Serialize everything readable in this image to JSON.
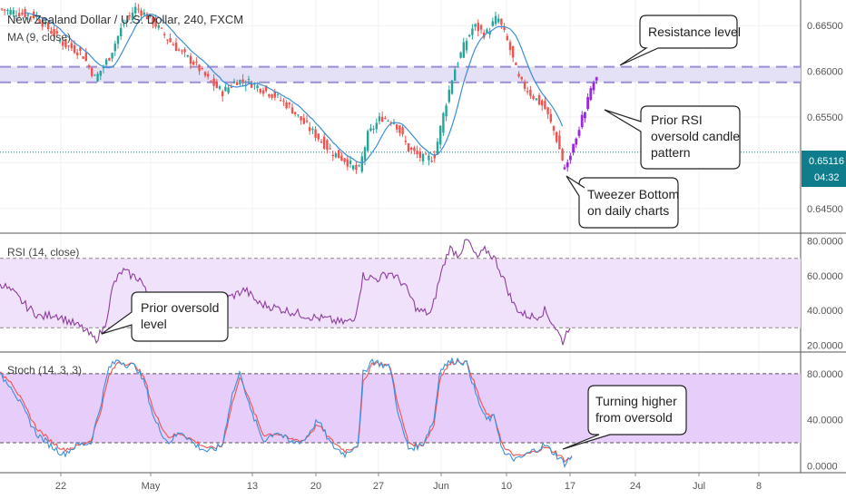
{
  "chart_data": {
    "type": "candlestick",
    "symbol_title": "New Zealand Dollar / U.S. Dollar, 240, FXCM",
    "ma_label": "MA (9, close)",
    "price_axis": {
      "ticks": [
        "0.66500",
        "0.66000",
        "0.65500",
        "0.65000",
        "0.64500"
      ],
      "tick_values": [
        0.665,
        0.66,
        0.655,
        0.65,
        0.645
      ],
      "range": [
        0.6423,
        0.6678
      ],
      "last_price": "0.65116",
      "last_price_value": 0.65116,
      "countdown": "04:32"
    },
    "x_axis": {
      "labels": [
        "22",
        "May",
        "13",
        "20",
        "27",
        "Jun",
        "10",
        "17",
        "24",
        "Jul",
        "8"
      ]
    },
    "resistance": {
      "high": 0.6605,
      "low": 0.6588
    },
    "price_path": [
      [
        0,
        0.6668
      ],
      [
        40,
        0.666
      ],
      [
        70,
        0.663
      ],
      [
        90,
        0.662
      ],
      [
        105,
        0.6592
      ],
      [
        120,
        0.6615
      ],
      [
        135,
        0.665
      ],
      [
        150,
        0.667
      ],
      [
        168,
        0.6655
      ],
      [
        185,
        0.6635
      ],
      [
        200,
        0.662
      ],
      [
        215,
        0.6608
      ],
      [
        230,
        0.659
      ],
      [
        245,
        0.6577
      ],
      [
        260,
        0.659
      ],
      [
        275,
        0.6588
      ],
      [
        290,
        0.658
      ],
      [
        305,
        0.6572
      ],
      [
        320,
        0.656
      ],
      [
        335,
        0.6543
      ],
      [
        350,
        0.6528
      ],
      [
        365,
        0.6512
      ],
      [
        380,
        0.6503
      ],
      [
        395,
        0.649
      ],
      [
        405,
        0.653
      ],
      [
        420,
        0.655
      ],
      [
        435,
        0.6545
      ],
      [
        450,
        0.6515
      ],
      [
        465,
        0.6505
      ],
      [
        478,
        0.6505
      ],
      [
        490,
        0.656
      ],
      [
        500,
        0.66
      ],
      [
        512,
        0.663
      ],
      [
        522,
        0.665
      ],
      [
        535,
        0.664
      ],
      [
        548,
        0.666
      ],
      [
        560,
        0.663
      ],
      [
        572,
        0.659
      ],
      [
        585,
        0.6575
      ],
      [
        600,
        0.656
      ],
      [
        612,
        0.653
      ],
      [
        622,
        0.6495
      ],
      [
        632,
        0.6525
      ]
    ],
    "highlight_path": [
      [
        622,
        0.6495
      ],
      [
        630,
        0.6515
      ],
      [
        640,
        0.6545
      ],
      [
        648,
        0.657
      ],
      [
        654,
        0.659
      ],
      [
        660,
        0.6595
      ]
    ],
    "rsi": {
      "label": "RSI (14, close)",
      "ticks": [
        "80.0000",
        "60.0000",
        "40.0000",
        "20.0000"
      ],
      "tick_values": [
        80,
        60,
        40,
        20
      ],
      "range": [
        16,
        84
      ],
      "upper": 70,
      "lower": 30,
      "values": [
        [
          0,
          56
        ],
        [
          15,
          50
        ],
        [
          30,
          42
        ],
        [
          45,
          36
        ],
        [
          60,
          38
        ],
        [
          75,
          34
        ],
        [
          90,
          30
        ],
        [
          105,
          23
        ],
        [
          115,
          30
        ],
        [
          125,
          55
        ],
        [
          135,
          63
        ],
        [
          145,
          60
        ],
        [
          155,
          58
        ],
        [
          165,
          45
        ],
        [
          180,
          40
        ],
        [
          195,
          38
        ],
        [
          210,
          44
        ],
        [
          225,
          46
        ],
        [
          240,
          45
        ],
        [
          255,
          48
        ],
        [
          270,
          52
        ],
        [
          285,
          44
        ],
        [
          300,
          42
        ],
        [
          315,
          40
        ],
        [
          330,
          38
        ],
        [
          345,
          36
        ],
        [
          360,
          35
        ],
        [
          375,
          33
        ],
        [
          390,
          34
        ],
        [
          400,
          60
        ],
        [
          415,
          58
        ],
        [
          430,
          62
        ],
        [
          445,
          55
        ],
        [
          460,
          40
        ],
        [
          475,
          38
        ],
        [
          485,
          60
        ],
        [
          495,
          76
        ],
        [
          505,
          72
        ],
        [
          515,
          81
        ],
        [
          525,
          70
        ],
        [
          535,
          75
        ],
        [
          545,
          70
        ],
        [
          555,
          58
        ],
        [
          565,
          44
        ],
        [
          575,
          38
        ],
        [
          590,
          36
        ],
        [
          600,
          40
        ],
        [
          612,
          30
        ],
        [
          620,
          22
        ],
        [
          628,
          32
        ]
      ]
    },
    "stoch": {
      "label": "Stoch (14, 3, 3)",
      "ticks": [
        "80.0000",
        "40.0000",
        "0.0000"
      ],
      "tick_values": [
        80,
        40,
        0
      ],
      "range": [
        -6,
        98
      ],
      "upper": 80,
      "lower": 20,
      "k": [
        [
          0,
          78
        ],
        [
          12,
          70
        ],
        [
          25,
          50
        ],
        [
          40,
          28
        ],
        [
          55,
          18
        ],
        [
          70,
          10
        ],
        [
          85,
          18
        ],
        [
          100,
          20
        ],
        [
          110,
          50
        ],
        [
          120,
          85
        ],
        [
          130,
          92
        ],
        [
          140,
          88
        ],
        [
          150,
          86
        ],
        [
          160,
          70
        ],
        [
          170,
          40
        ],
        [
          185,
          20
        ],
        [
          200,
          30
        ],
        [
          215,
          18
        ],
        [
          230,
          12
        ],
        [
          245,
          18
        ],
        [
          255,
          60
        ],
        [
          265,
          82
        ],
        [
          275,
          50
        ],
        [
          290,
          22
        ],
        [
          305,
          30
        ],
        [
          320,
          20
        ],
        [
          335,
          22
        ],
        [
          350,
          40
        ],
        [
          365,
          18
        ],
        [
          380,
          10
        ],
        [
          395,
          20
        ],
        [
          400,
          80
        ],
        [
          410,
          92
        ],
        [
          420,
          88
        ],
        [
          430,
          85
        ],
        [
          440,
          40
        ],
        [
          450,
          15
        ],
        [
          465,
          18
        ],
        [
          478,
          40
        ],
        [
          485,
          85
        ],
        [
          495,
          90
        ],
        [
          505,
          92
        ],
        [
          515,
          88
        ],
        [
          525,
          60
        ],
        [
          535,
          40
        ],
        [
          545,
          42
        ],
        [
          555,
          10
        ],
        [
          570,
          5
        ],
        [
          585,
          12
        ],
        [
          600,
          18
        ],
        [
          612,
          10
        ],
        [
          622,
          2
        ],
        [
          630,
          8
        ]
      ],
      "d": [
        [
          0,
          80
        ],
        [
          12,
          74
        ],
        [
          25,
          55
        ],
        [
          40,
          33
        ],
        [
          55,
          22
        ],
        [
          70,
          14
        ],
        [
          85,
          17
        ],
        [
          100,
          22
        ],
        [
          110,
          45
        ],
        [
          120,
          78
        ],
        [
          130,
          90
        ],
        [
          140,
          89
        ],
        [
          150,
          87
        ],
        [
          160,
          74
        ],
        [
          170,
          46
        ],
        [
          185,
          25
        ],
        [
          200,
          28
        ],
        [
          215,
          21
        ],
        [
          230,
          15
        ],
        [
          245,
          17
        ],
        [
          255,
          52
        ],
        [
          265,
          78
        ],
        [
          275,
          56
        ],
        [
          290,
          27
        ],
        [
          305,
          28
        ],
        [
          320,
          23
        ],
        [
          335,
          22
        ],
        [
          350,
          36
        ],
        [
          365,
          22
        ],
        [
          380,
          13
        ],
        [
          395,
          18
        ],
        [
          400,
          72
        ],
        [
          410,
          89
        ],
        [
          420,
          89
        ],
        [
          430,
          86
        ],
        [
          440,
          48
        ],
        [
          450,
          20
        ],
        [
          465,
          17
        ],
        [
          478,
          35
        ],
        [
          485,
          78
        ],
        [
          495,
          88
        ],
        [
          505,
          91
        ],
        [
          515,
          89
        ],
        [
          525,
          66
        ],
        [
          535,
          45
        ],
        [
          545,
          42
        ],
        [
          555,
          15
        ],
        [
          570,
          8
        ],
        [
          585,
          11
        ],
        [
          600,
          16
        ],
        [
          612,
          12
        ],
        [
          622,
          5
        ],
        [
          630,
          7
        ]
      ]
    }
  },
  "annotations": {
    "resistance": "Resistance level",
    "rsi_candle": [
      "Prior RSI",
      "oversold candle",
      "pattern"
    ],
    "tweezer": [
      "Tweezer Bottom",
      "on daily charts"
    ],
    "prior_oversold": [
      "Prior oversold",
      "level"
    ],
    "turning": [
      "Turning higher",
      "from oversold"
    ]
  },
  "colors": {
    "up": "#26a69a",
    "down": "#ef5350",
    "ma": "#3a8fd8",
    "highlight": "#9c27e0",
    "rsi_line": "#8e3d9e",
    "rsi_band": "#f0e2fb",
    "stoch_band": "#e7cdfa",
    "stoch_k": "#3a8fd8",
    "stoch_d": "#ef5350",
    "resistance_band": "#e4e0f6",
    "resistance_line": "#9b8ed4",
    "last_price_bg": "#0f7d8c"
  }
}
